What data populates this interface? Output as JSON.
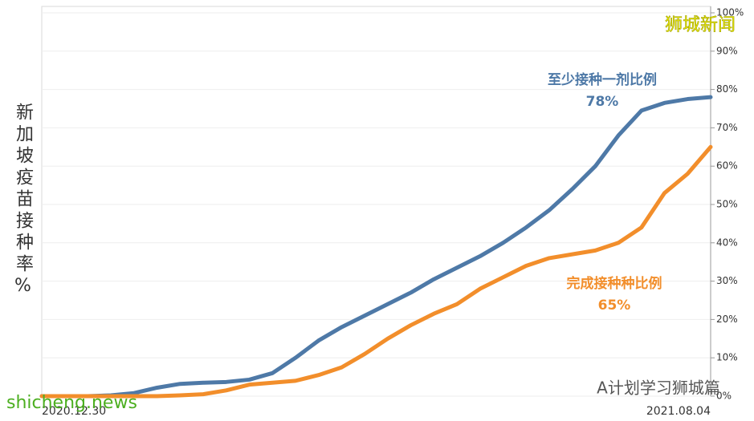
{
  "chart_data": {
    "type": "line",
    "y_label": "新加坡疫苗接种率%",
    "categories": [
      "2020.12.30",
      null,
      null,
      null,
      null,
      null,
      null,
      null,
      null,
      null,
      null,
      null,
      null,
      null,
      null,
      null,
      null,
      null,
      null,
      null,
      null,
      null,
      null,
      null,
      null,
      null,
      null,
      null,
      null,
      "2021.08.04"
    ],
    "series": [
      {
        "name": "至少接种一剂比例",
        "color": "#4e79a7",
        "end_label": "78%",
        "values": [
          0,
          0,
          0,
          0.2,
          0.8,
          2.2,
          3.2,
          3.5,
          3.7,
          4.3,
          6,
          10,
          14.5,
          18,
          21,
          24,
          27,
          30.5,
          33.5,
          36.5,
          40,
          44,
          48.5,
          54,
          60,
          68,
          74.5,
          76.5,
          77.5,
          78
        ]
      },
      {
        "name": "完成接种种比例",
        "color": "#f28e2b",
        "end_label": "65%",
        "values": [
          0,
          0,
          0,
          0,
          0,
          0,
          0.2,
          0.5,
          1.5,
          3,
          3.5,
          4,
          5.5,
          7.5,
          11,
          15,
          18.5,
          21.5,
          24,
          28,
          31,
          34,
          36,
          37,
          38,
          40,
          44,
          53,
          58,
          65
        ]
      }
    ],
    "ylim": [
      0,
      100
    ],
    "yticks": [
      {
        "value": 0,
        "label": "0%"
      },
      {
        "value": 10,
        "label": "10%"
      },
      {
        "value": 20,
        "label": "20%"
      },
      {
        "value": 30,
        "label": "30%"
      },
      {
        "value": 40,
        "label": "40%"
      },
      {
        "value": 50,
        "label": "50%"
      },
      {
        "value": 60,
        "label": "60%"
      },
      {
        "value": 70,
        "label": "70%"
      },
      {
        "value": 80,
        "label": "80%"
      },
      {
        "value": 90,
        "label": "90%"
      },
      {
        "value": 100,
        "label": "100%"
      }
    ],
    "grid": true,
    "watermarks": [
      "狮城新闻",
      "A计划学习狮城篇",
      "shicheng.news"
    ]
  }
}
